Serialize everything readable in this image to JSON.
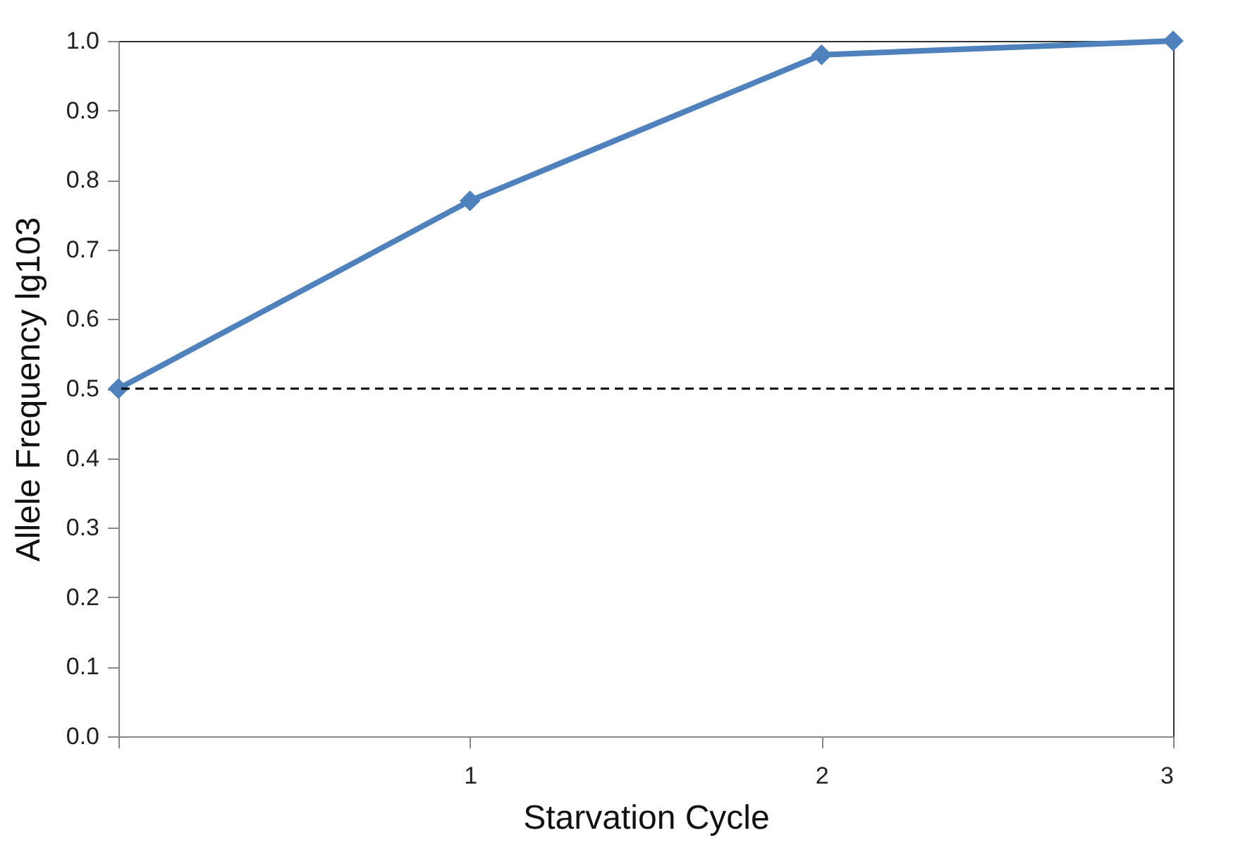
{
  "chart_data": {
    "type": "line",
    "xlabel": "Starvation Cycle",
    "ylabel": "Allele Frequency lg103",
    "x": [
      0,
      1,
      2,
      3
    ],
    "series": [
      {
        "color": "#4f81bd",
        "values": [
          0.5,
          0.77,
          0.98,
          1.0
        ]
      }
    ],
    "xlim": [
      0,
      3
    ],
    "xticks": [
      {
        "value": 0,
        "label": null
      },
      1,
      2,
      3
    ],
    "ylim": [
      0,
      1
    ],
    "yticks": [
      {
        "value": 0,
        "label": "0.0"
      },
      0.1,
      0.2,
      0.3,
      0.4,
      0.5,
      0.6,
      0.7,
      0.8,
      0.9,
      {
        "value": 1,
        "label": "1.0"
      }
    ],
    "ref_lines": [
      {
        "axis": "y",
        "value": 0.5,
        "color": "#000000",
        "line_style": "dashed"
      }
    ],
    "marker": "diamond",
    "line_style": "solid",
    "grid": false,
    "legend": false
  }
}
